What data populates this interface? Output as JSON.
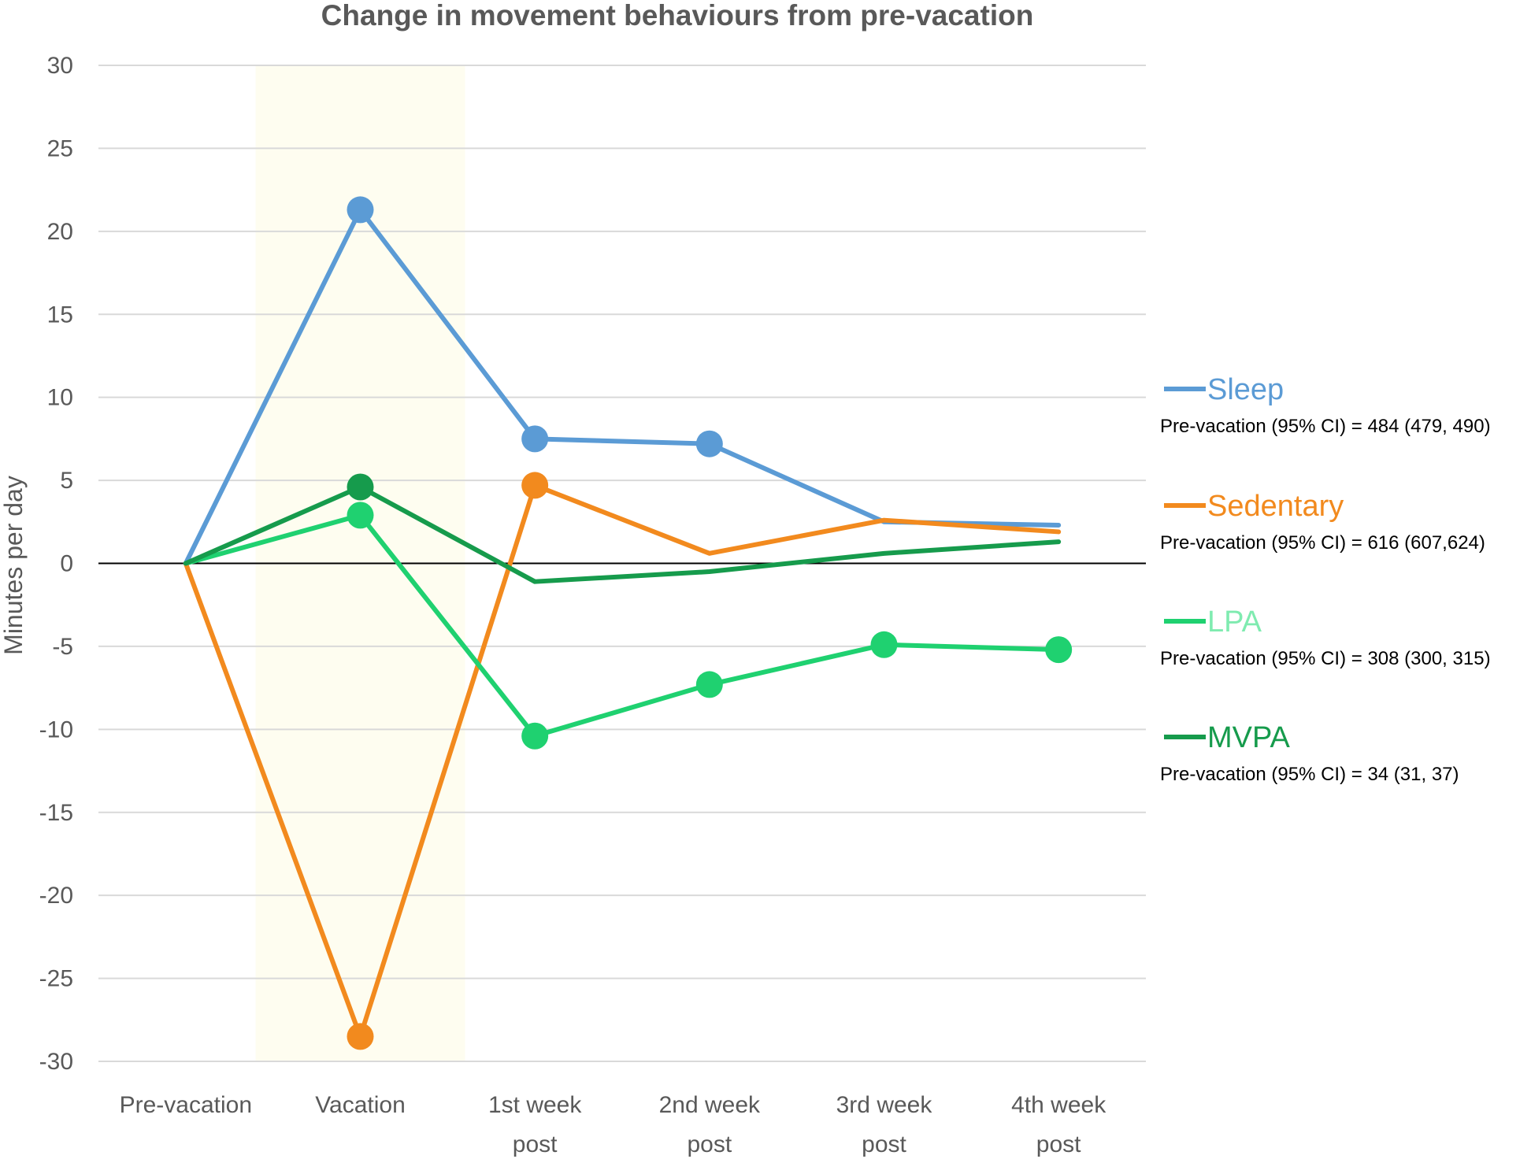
{
  "chart_data": {
    "type": "line",
    "title": "Change in movement behaviours from pre-vacation",
    "ylabel": "Minutes per day",
    "xlabel": "",
    "ylim": [
      -30,
      30
    ],
    "yticks": [
      30,
      25,
      20,
      15,
      10,
      5,
      0,
      -5,
      -10,
      -15,
      -20,
      -25,
      -30
    ],
    "grid": true,
    "highlighted_category": "Vacation",
    "categories": [
      [
        "Pre-vacation"
      ],
      [
        "Vacation"
      ],
      [
        "1st week",
        "post"
      ],
      [
        "2nd week",
        "post"
      ],
      [
        "3rd week",
        "post"
      ],
      [
        "4th week",
        "post"
      ]
    ],
    "legend_position": "right",
    "series": [
      {
        "name": "Sleep",
        "color": "#5B9BD5",
        "values": [
          0,
          21.3,
          7.5,
          7.2,
          2.5,
          2.3
        ],
        "markers": [
          false,
          true,
          true,
          true,
          false,
          false
        ],
        "note": "Pre-vacation (95% CI) = 484 (479, 490)"
      },
      {
        "name": "Sedentary",
        "color": "#F28A1E",
        "values": [
          0,
          -28.5,
          4.7,
          0.6,
          2.6,
          1.9
        ],
        "markers": [
          false,
          true,
          true,
          false,
          false,
          false
        ],
        "note": "Pre-vacation (95% CI) = 616 (607,624)"
      },
      {
        "name": "LPA",
        "color": "#1FD170",
        "label_color": "#7FEBB0",
        "values": [
          0,
          2.9,
          -10.4,
          -7.3,
          -4.9,
          -5.2
        ],
        "markers": [
          false,
          true,
          true,
          true,
          true,
          true
        ],
        "note": "Pre-vacation (95% CI) = 308 (300, 315)"
      },
      {
        "name": "MVPA",
        "color": "#169B4C",
        "values": [
          0,
          4.6,
          -1.1,
          -0.5,
          0.6,
          1.3
        ],
        "markers": [
          false,
          true,
          false,
          false,
          false,
          false
        ],
        "note": "Pre-vacation (95% CI) = 34 (31, 37)"
      }
    ]
  }
}
